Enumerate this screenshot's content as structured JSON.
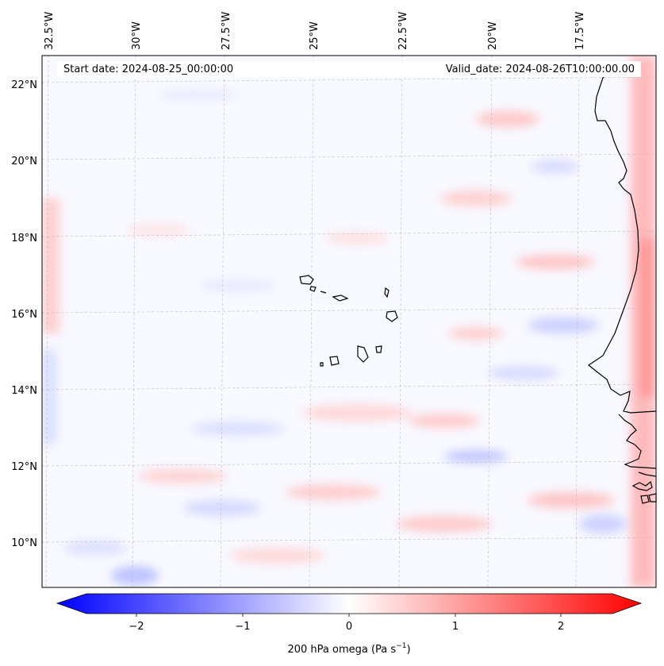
{
  "header": {
    "start_label": "Start date: 2024-08-25_00:00:00",
    "valid_label": "Valid_date: 2024-08-26T10:00:00.00"
  },
  "map": {
    "field": "200 hPa omega",
    "lon_labels": [
      "32.5°W",
      "30°W",
      "27.5°W",
      "25°W",
      "22.5°W",
      "20°W",
      "17.5°W"
    ],
    "lat_labels": [
      "22°N",
      "20°N",
      "18°N",
      "16°N",
      "14°N",
      "12°N",
      "10°N"
    ],
    "features": [
      "cape-verde-islands",
      "west-africa-coastline"
    ]
  },
  "colorbar": {
    "label_main": "200 hPa omega (Pa s",
    "label_exp": "−1",
    "label_close": ")",
    "ticks": [
      "−2",
      "−1",
      "0",
      "1",
      "2"
    ],
    "range": [
      -2.6,
      2.6
    ],
    "low_color": "#0000ff",
    "mid_color": "#ffffff",
    "high_color": "#ff0000"
  }
}
